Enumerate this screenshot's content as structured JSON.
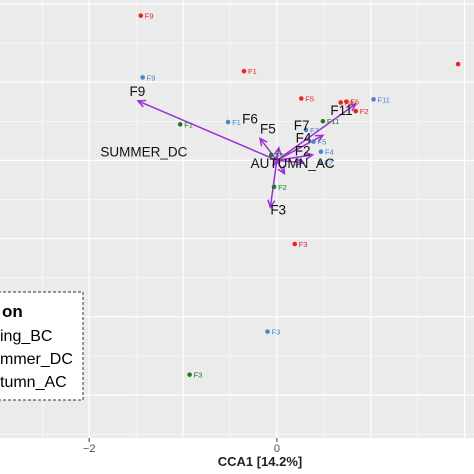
{
  "chart_data": {
    "type": "scatter",
    "title": "",
    "xlabel": "CCA1  [14.2%]",
    "ylabel": "",
    "xlim": [
      -2.95,
      2.1
    ],
    "ylim": [
      -3.55,
      2.05
    ],
    "grid": true,
    "x_ticks": [
      {
        "value": -2,
        "label": "−2"
      },
      {
        "value": 0,
        "label": "0"
      }
    ],
    "colors": {
      "spring_bc": "#e8261f",
      "summer_dc": "#4a86c8",
      "autumn_ac": "#1c7a26",
      "arrow": "#9b30d9",
      "panel": "#ebebeb",
      "grid": "#ffffff"
    },
    "series": [
      {
        "key": "spring_bc",
        "color": "#e8261f",
        "points": [
          {
            "label": "F9",
            "x": -1.45,
            "y": 1.85
          },
          {
            "label": "F1",
            "x": -0.35,
            "y": 1.14
          },
          {
            "label": "F5",
            "x": 0.26,
            "y": 0.79
          },
          {
            "label": "F8",
            "x": 0.68,
            "y": 0.74
          },
          {
            "label": "F6",
            "x": 0.74,
            "y": 0.75
          },
          {
            "label": "F2",
            "x": 0.84,
            "y": 0.63
          },
          {
            "label": "F3",
            "x": 0.19,
            "y": -1.07
          },
          {
            "label": "",
            "x": 1.93,
            "y": 1.23
          }
        ]
      },
      {
        "key": "summer_dc",
        "color": "#4a86c8",
        "points": [
          {
            "label": "F9",
            "x": -1.43,
            "y": 1.06
          },
          {
            "label": "F1",
            "x": -0.52,
            "y": 0.49
          },
          {
            "label": "F11",
            "x": 1.03,
            "y": 0.78
          },
          {
            "label": "F7",
            "x": 0.31,
            "y": 0.39
          },
          {
            "label": "F5",
            "x": 0.39,
            "y": 0.24
          },
          {
            "label": "F4",
            "x": 0.47,
            "y": 0.11
          },
          {
            "label": "F2",
            "x": 0.46,
            "y": -0.03
          },
          {
            "label": "F3",
            "x": -0.1,
            "y": -2.19
          }
        ]
      },
      {
        "key": "autumn_ac",
        "color": "#1c7a26",
        "points": [
          {
            "label": "F1",
            "x": -1.03,
            "y": 0.46
          },
          {
            "label": "F11",
            "x": 0.49,
            "y": 0.5
          },
          {
            "label": "F5",
            "x": -0.06,
            "y": 0.07
          },
          {
            "label": "F2",
            "x": -0.03,
            "y": -0.34
          },
          {
            "label": "F3",
            "x": -0.93,
            "y": -2.74
          }
        ]
      }
    ],
    "vectors": [
      {
        "label": "F9",
        "x": -1.48,
        "y": 0.76
      },
      {
        "label": "F6",
        "x": -0.18,
        "y": 0.28
      },
      {
        "label": "F5",
        "x": 0.02,
        "y": 0.16
      },
      {
        "label": "F7",
        "x": 0.49,
        "y": 0.32
      },
      {
        "label": "F11",
        "x": 0.84,
        "y": 0.72
      },
      {
        "label": "F4",
        "x": 0.38,
        "y": 0.07
      },
      {
        "label": "F2",
        "x": 0.28,
        "y": -0.03
      },
      {
        "label": "SUMMER_DC",
        "x": -0.04,
        "y": -0.06
      },
      {
        "label": "AUTUMN_AC",
        "x": 0.08,
        "y": -0.17
      },
      {
        "label": "F3",
        "x": -0.07,
        "y": -0.6
      }
    ],
    "vector_labels": [
      {
        "text": "F9",
        "x": -1.57,
        "y": 0.82
      },
      {
        "text": "F6",
        "x": -0.37,
        "y": 0.47
      },
      {
        "text": "F5",
        "x": -0.18,
        "y": 0.34
      },
      {
        "text": "F7",
        "x": 0.18,
        "y": 0.39
      },
      {
        "text": "F11",
        "x": 0.57,
        "y": 0.58
      },
      {
        "text": "F4",
        "x": 0.2,
        "y": 0.23
      },
      {
        "text": "F2",
        "x": 0.19,
        "y": 0.06
      },
      {
        "text": "SUMMER_DC",
        "x": -1.88,
        "y": 0.05
      },
      {
        "text": "AUTUMN_AC",
        "x": -0.28,
        "y": -0.1
      },
      {
        "text": "F3",
        "x": -0.07,
        "y": -0.69
      }
    ],
    "legend": {
      "placement": "bottom-left",
      "title": "on",
      "entries": [
        "ing_BC",
        "mmer_DC",
        "tumn_AC"
      ]
    }
  }
}
